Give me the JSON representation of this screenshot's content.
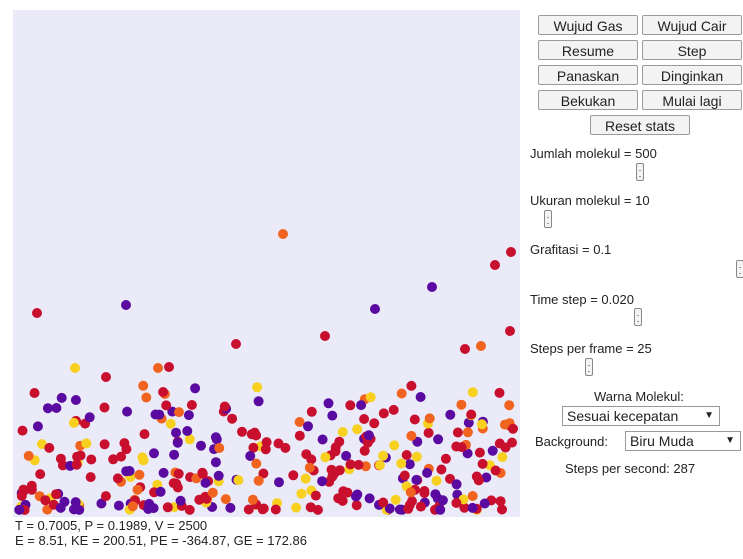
{
  "readouts": {
    "line1": "T = 0.7005, P = 0.1989, V = 2500",
    "line2": "E = 8.51, KE = 200.51, PE = -364.87, GE = 172.86"
  },
  "buttons": {
    "gas": "Wujud Gas",
    "liquid": "Wujud Cair",
    "resume": "Resume",
    "step": "Step",
    "heat": "Panaskan",
    "cool": "Dinginkan",
    "freeze": "Bekukan",
    "restart": "Mulai lagi",
    "reset_stats": "Reset stats"
  },
  "sliders": {
    "molecules": {
      "label": "Jumlah molekul = 500",
      "value": 500
    },
    "size": {
      "label": "Ukuran molekul = 10",
      "value": 10
    },
    "gravity": {
      "label": "Grafitasi = 0.1",
      "value": 0.1
    },
    "timestep": {
      "label": "Time step = 0.020",
      "value": 0.02
    },
    "steps_frame": {
      "label": "Steps per frame = 25",
      "value": 25
    }
  },
  "color_mode": {
    "label": "Warna Molekul:",
    "selected": "Sesuai kecepatan"
  },
  "background": {
    "label": "Background:",
    "selected": "Biru Muda"
  },
  "steps_per_second": "Steps per second: 287",
  "colors": {
    "canvas": "#eaeaf8",
    "slow": "#5a0aa0",
    "mid": "#c8102e",
    "fast": "#f06420",
    "fastest": "#f8d020"
  }
}
